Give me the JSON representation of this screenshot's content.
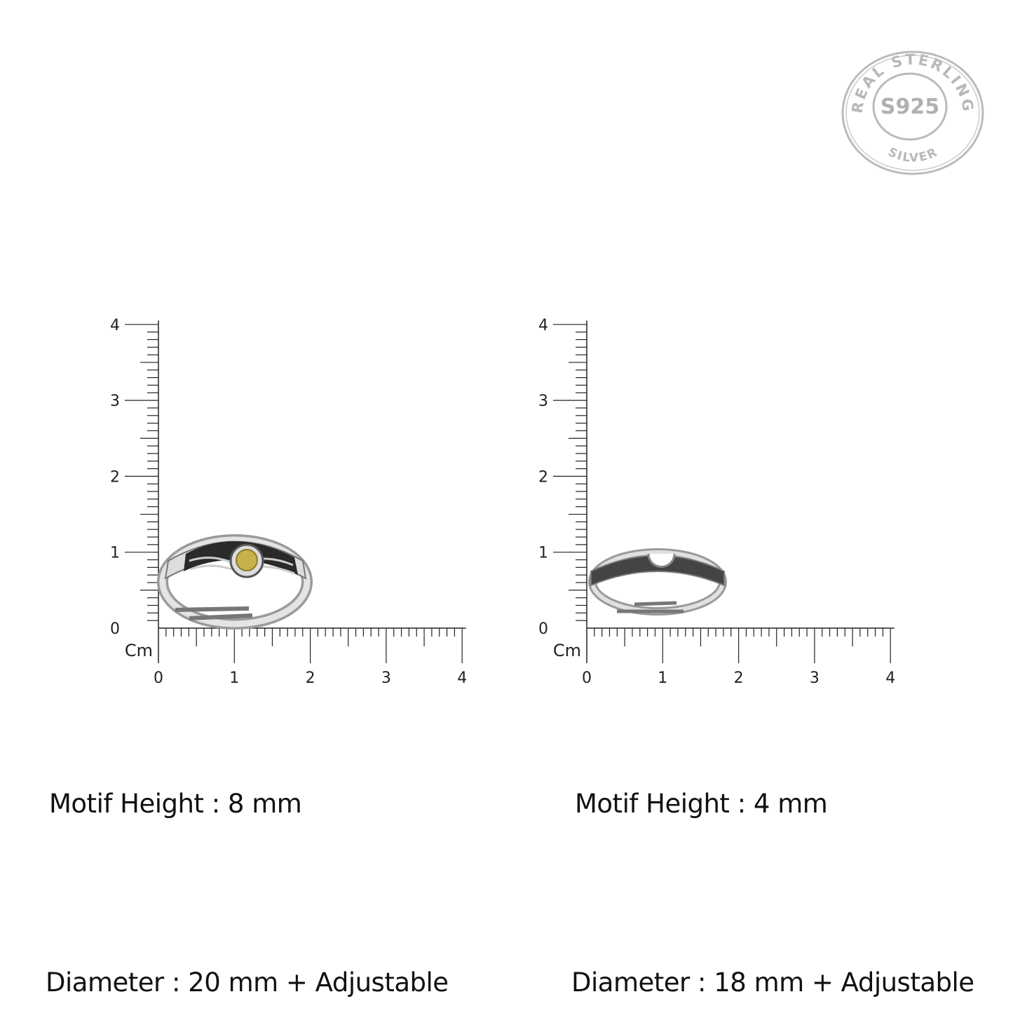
{
  "seal": {
    "top_text": "REAL STERLING",
    "center_text": "S925",
    "bottom_text": "SILVER",
    "color": "#b8b8b8"
  },
  "rulers": [
    {
      "unit_label": "Cm",
      "x_ticks": [
        "0",
        "1",
        "2",
        "3",
        "4"
      ],
      "y_ticks": [
        "0",
        "1",
        "2",
        "3",
        "4"
      ],
      "product": "sun-ring"
    },
    {
      "unit_label": "Cm",
      "x_ticks": [
        "0",
        "1",
        "2",
        "3",
        "4"
      ],
      "y_ticks": [
        "0",
        "1",
        "2",
        "3",
        "4"
      ],
      "product": "moon-ring"
    }
  ],
  "specs": [
    {
      "motif": "Motif Height : 8 mm",
      "diameter": "Diameter : 20 mm + Adjustable"
    },
    {
      "motif": "Motif Height : 4 mm",
      "diameter": "Diameter : 18 mm + Adjustable"
    }
  ],
  "colors": {
    "stone": "#c9b24a",
    "silver": "#c8c8c8",
    "oxidized": "#2a2a2a"
  }
}
